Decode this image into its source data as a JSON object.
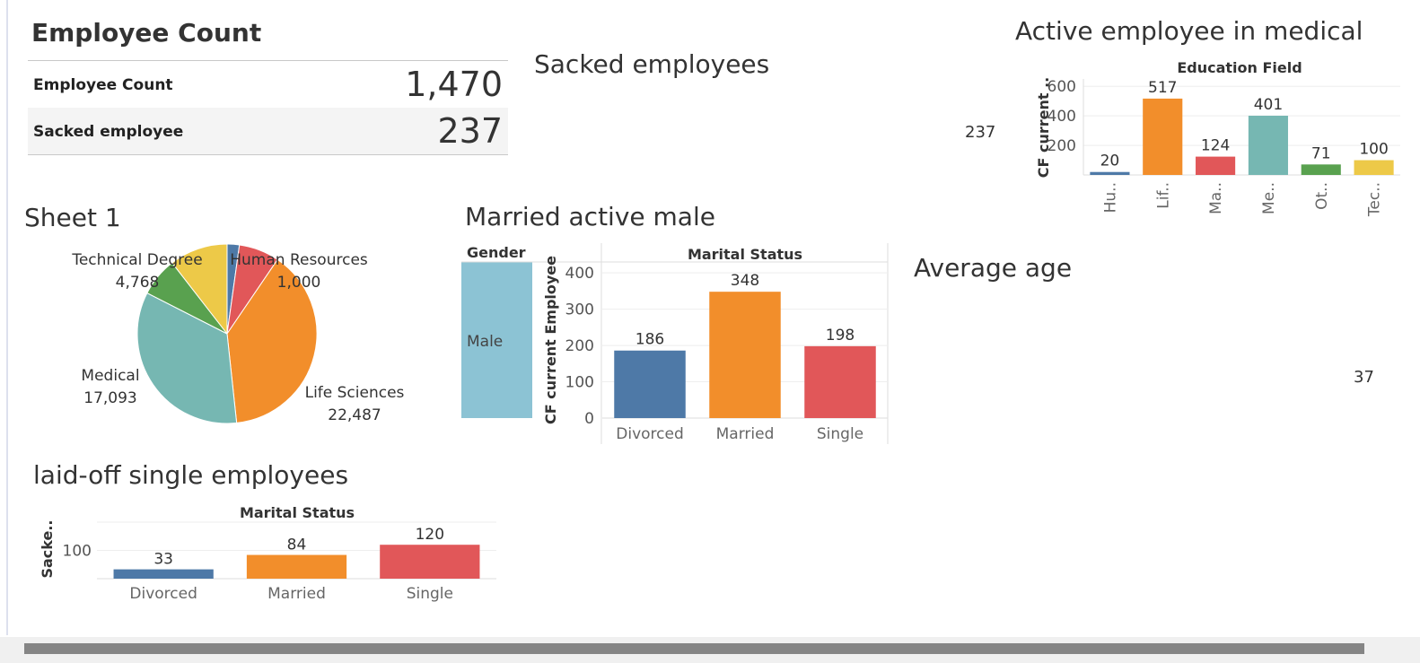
{
  "kpi": {
    "title": "Employee Count",
    "rows": [
      {
        "label": "Employee Count",
        "value": "1,470"
      },
      {
        "label": "Sacked employee",
        "value": "237"
      }
    ]
  },
  "sacked": {
    "title": "Sacked employees",
    "value": "237"
  },
  "avg_age": {
    "title": "Average age",
    "value": "37"
  },
  "colors": {
    "blue": "#4e79a7",
    "orange": "#f28e2b",
    "red": "#e15759",
    "teal": "#76b7b2",
    "green": "#59a14f",
    "yellow": "#edc948",
    "light_blue": "#8cc3d4"
  },
  "chart_data": [
    {
      "id": "active-medical",
      "type": "bar",
      "title": "Active employee in medical",
      "xlabel": "Education Field",
      "ylabel": "CF current ..",
      "categories": [
        "Hu..",
        "Lif..",
        "Ma..",
        "Me..",
        "Ot..",
        "Tec.."
      ],
      "values": [
        20,
        517,
        124,
        401,
        71,
        100
      ],
      "colors": [
        "#4e79a7",
        "#f28e2b",
        "#e15759",
        "#76b7b2",
        "#59a14f",
        "#edc948"
      ],
      "yticks": [
        "200",
        "400",
        "600"
      ],
      "ylim": [
        0,
        650
      ],
      "grid": true
    },
    {
      "id": "sheet1",
      "type": "pie",
      "title": "Sheet 1",
      "slices": [
        {
          "label": "Human Resources",
          "value": "1,000",
          "color": "#4e79a7"
        },
        {
          "label": "",
          "value": "",
          "color": "#e15759"
        },
        {
          "label": "Life Sciences",
          "value": "22,487",
          "color": "#f28e2b"
        },
        {
          "label": "Medical",
          "value": "17,093",
          "color": "#76b7b2"
        },
        {
          "label": "",
          "value": "",
          "color": "#59a14f"
        },
        {
          "label": "Technical Degree",
          "value": "4,768",
          "color": "#edc948"
        }
      ],
      "fractions": [
        0.022,
        0.073,
        0.388,
        0.342,
        0.07,
        0.105
      ]
    },
    {
      "id": "married-active-male",
      "type": "bar",
      "title": "Married active male",
      "row_header": "Gender",
      "row_value": "Male",
      "col_header": "Marital Status",
      "ylabel": "CF current Employee",
      "categories": [
        "Divorced",
        "Married",
        "Single"
      ],
      "values": [
        186,
        348,
        198
      ],
      "colors": [
        "#4e79a7",
        "#f28e2b",
        "#e15759"
      ],
      "yticks": [
        "0",
        "100",
        "200",
        "300",
        "400"
      ],
      "ylim": [
        0,
        430
      ],
      "grid": true
    },
    {
      "id": "laid-off-single",
      "type": "bar",
      "title": "laid-off single employees",
      "xlabel": "Marital Status",
      "ylabel": "Sacke..",
      "categories": [
        "Divorced",
        "Married",
        "Single"
      ],
      "values": [
        33,
        84,
        120
      ],
      "colors": [
        "#4e79a7",
        "#f28e2b",
        "#e15759"
      ],
      "yticks": [
        "100"
      ],
      "ylim": [
        0,
        200
      ],
      "grid": true
    }
  ]
}
